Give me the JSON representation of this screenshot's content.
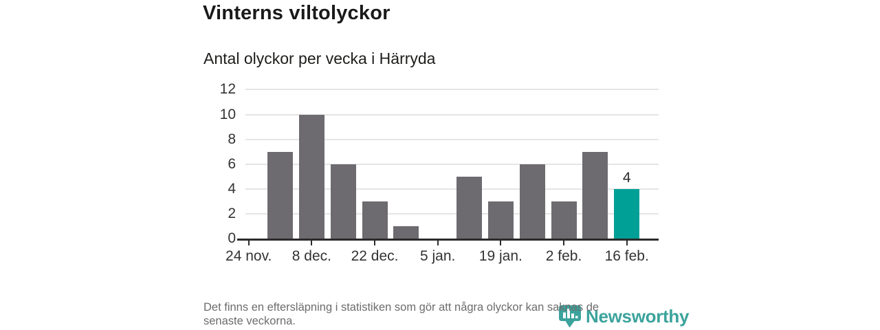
{
  "header": {
    "title": "Vinterns viltolyckor",
    "subtitle": "Antal olyckor per vecka i Härryda"
  },
  "chart_data": {
    "type": "bar",
    "title": "Vinterns viltolyckor",
    "subtitle": "Antal olyckor per vecka i Härryda",
    "n_slots": 13,
    "values": [
      0,
      7,
      10,
      6,
      3,
      1,
      0,
      5,
      3,
      6,
      3,
      7,
      4
    ],
    "x_ticks": [
      {
        "index": 0,
        "label": "24 nov."
      },
      {
        "index": 2,
        "label": "8 dec."
      },
      {
        "index": 4,
        "label": "22 dec."
      },
      {
        "index": 6,
        "label": "5 jan."
      },
      {
        "index": 8,
        "label": "19 jan."
      },
      {
        "index": 10,
        "label": "2 feb."
      },
      {
        "index": 12,
        "label": "16 feb."
      }
    ],
    "y_ticks": [
      0,
      2,
      4,
      6,
      8,
      10,
      12
    ],
    "ylim": [
      0,
      12
    ],
    "grid": "horizontal",
    "legend": "none",
    "highlight_index": 12,
    "bar_labels": [
      {
        "index": 12,
        "text": "4"
      }
    ],
    "colors": {
      "bar": "#6e6b70",
      "highlight": "#00a096",
      "gridline": "#e5e5e5",
      "axis": "#2b2b2b",
      "tick_text": "#333333"
    }
  },
  "footer": {
    "note_line1": "Det finns en eftersläpning i statistiken som gör att några olyckor kan saknas de",
    "note_line2": "senaste veckorna.",
    "logo_text": "Newsworthy",
    "logo_color": "#3ba39c"
  }
}
